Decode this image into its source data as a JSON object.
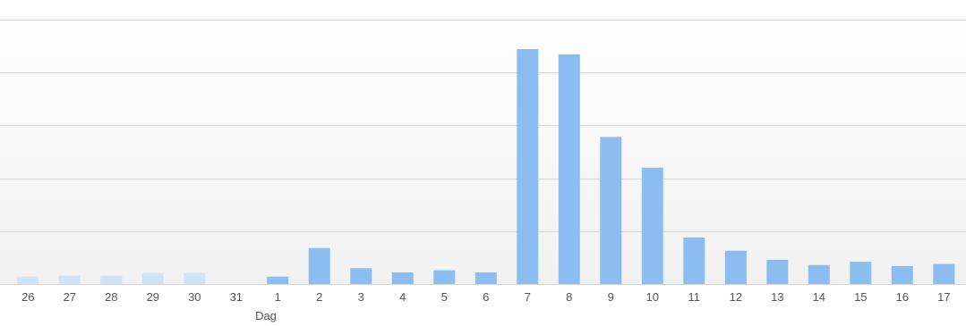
{
  "chart_data": {
    "type": "bar",
    "title": "",
    "xlabel": "Dag",
    "ylabel": "",
    "categories": [
      "26",
      "27",
      "28",
      "29",
      "30",
      "31",
      "1",
      "2",
      "3",
      "4",
      "5",
      "6",
      "7",
      "8",
      "9",
      "10",
      "11",
      "12",
      "13",
      "14",
      "15",
      "16",
      "17"
    ],
    "values": [
      1.4,
      1.6,
      1.6,
      2.1,
      2.1,
      0,
      1.4,
      6.8,
      3.0,
      2.2,
      2.6,
      2.2,
      44.4,
      43.4,
      27.8,
      22.0,
      8.8,
      6.3,
      4.6,
      3.6,
      4.2,
      3.4,
      3.8
    ],
    "ylim": [
      0,
      52
    ],
    "grid": true,
    "colors": {
      "bar": "#8cbdf0",
      "bar_faded": "#cfe3f6",
      "grid": "#d6d6d6",
      "plot_bg_top": "#ffffff",
      "plot_bg_bottom": "#f1f1f1",
      "axis_text": "#555555"
    },
    "faded_indices": [
      0,
      1,
      2,
      3,
      4,
      5
    ]
  }
}
